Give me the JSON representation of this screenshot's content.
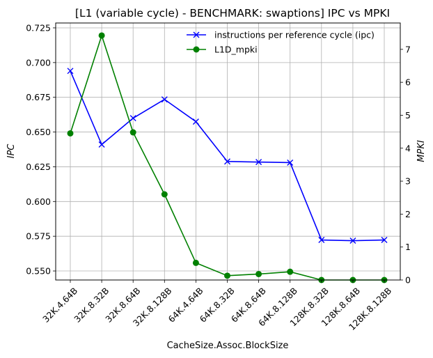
{
  "chart_data": {
    "type": "line",
    "title": "[L1 (variable cycle) - BENCHMARK: swaptions]  IPC vs MPKI",
    "xlabel": "CacheSize.Assoc.BlockSize",
    "ylabel_left": "IPC",
    "ylabel_right": "MPKI",
    "categories": [
      "32K.4.64B",
      "32K.8.32B",
      "32K.8.64B",
      "32K.8.128B",
      "64K.4.64B",
      "64K.8.32B",
      "64K.8.64B",
      "64K.8.128B",
      "128K.8.32B",
      "128K.8.64B",
      "128K.8.128B"
    ],
    "ylim_left": [
      0.5435,
      0.7285
    ],
    "ylim_right": [
      0,
      7.8
    ],
    "yticks_left": [
      "0.550",
      "0.575",
      "0.600",
      "0.625",
      "0.650",
      "0.675",
      "0.700",
      "0.725"
    ],
    "yticks_right": [
      "0",
      "1",
      "2",
      "3",
      "4",
      "5",
      "6",
      "7"
    ],
    "grid": true,
    "legend_position": "top-right",
    "series": [
      {
        "name": "instructions per reference cycle (ipc)",
        "axis": "left",
        "color": "#0000ff",
        "marker": "x",
        "values": [
          0.694,
          0.641,
          0.66,
          0.6735,
          0.6575,
          0.6288,
          0.6284,
          0.628,
          0.5723,
          0.5718,
          0.5723
        ]
      },
      {
        "name": "L1D_mpki",
        "axis": "right",
        "color": "#008000",
        "marker": "o",
        "values": [
          4.45,
          7.42,
          4.48,
          2.6,
          0.52,
          0.13,
          0.18,
          0.25,
          0.0,
          0.0,
          0.0
        ]
      }
    ]
  }
}
